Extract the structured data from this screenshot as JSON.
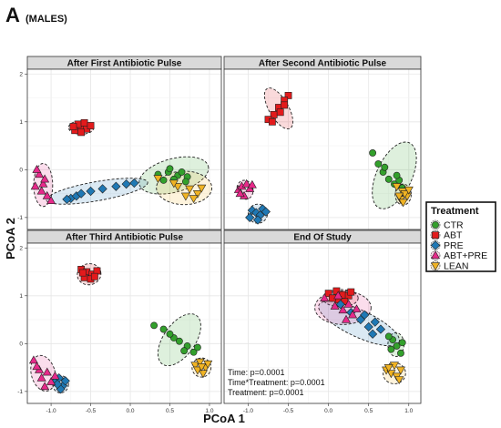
{
  "figure": {
    "panel_letter": "A",
    "panel_sublabel": "(MALES)",
    "xlabel": "PCoA 1",
    "ylabel": "PCoA 2",
    "stats": [
      "Time: p=0.0001",
      "Time*Treatment: p=0.0001",
      "Treatment: p=0.0001"
    ]
  },
  "legend": {
    "title": "Treatment",
    "items": [
      {
        "label": "CTR",
        "color": "#33a02c",
        "shape": "circle"
      },
      {
        "label": "ABT",
        "color": "#e31a1c",
        "shape": "square"
      },
      {
        "label": "PRE",
        "color": "#1f78b4",
        "shape": "diamond"
      },
      {
        "label": "ABT+PRE",
        "color": "#e7298a",
        "shape": "triangle-up"
      },
      {
        "label": "LEAN",
        "color": "#f0b323",
        "shape": "triangle-down"
      }
    ]
  },
  "chart_data": {
    "type": "scatter",
    "xlim": [
      -1.3,
      1.15
    ],
    "ylim": [
      -1.25,
      2.1
    ],
    "xticks": [
      -1.0,
      -0.5,
      0.0,
      0.5,
      1.0
    ],
    "xtick_labels": [
      "-1.0",
      "-0.5",
      "0.0",
      "0.5",
      "1.0"
    ],
    "yticks": [
      -1,
      0,
      1,
      2
    ],
    "ytick_labels": [
      "-1",
      "0",
      "1",
      "2"
    ],
    "grid": true,
    "legend_position": "right",
    "facets": [
      {
        "title": "After First Antibiotic Pulse",
        "groups": {
          "CTR": [
            [
              0.35,
              -0.1
            ],
            [
              0.48,
              -0.05
            ],
            [
              0.6,
              -0.12
            ],
            [
              0.72,
              -0.15
            ],
            [
              0.55,
              -0.2
            ],
            [
              0.42,
              -0.22
            ],
            [
              0.65,
              -0.05
            ],
            [
              0.5,
              0.02
            ],
            [
              0.7,
              -0.25
            ]
          ],
          "ABT": [
            [
              -0.7,
              0.82
            ],
            [
              -0.62,
              0.88
            ],
            [
              -0.55,
              0.85
            ],
            [
              -0.66,
              0.95
            ],
            [
              -0.58,
              0.98
            ],
            [
              -0.5,
              0.92
            ],
            [
              -0.72,
              0.9
            ],
            [
              -0.62,
              0.78
            ]
          ],
          "PRE": [
            [
              -0.75,
              -0.6
            ],
            [
              -0.68,
              -0.55
            ],
            [
              -0.62,
              -0.5
            ],
            [
              -0.5,
              -0.45
            ],
            [
              -0.35,
              -0.4
            ],
            [
              -0.18,
              -0.35
            ],
            [
              -0.05,
              -0.3
            ],
            [
              0.05,
              -0.28
            ],
            [
              -0.8,
              -0.62
            ]
          ],
          "ABT+PRE": [
            [
              -1.2,
              -0.35
            ],
            [
              -1.15,
              -0.1
            ],
            [
              -1.1,
              -0.3
            ],
            [
              -1.05,
              -0.55
            ],
            [
              -1.18,
              0.0
            ],
            [
              -1.08,
              -0.2
            ],
            [
              -1.0,
              -0.65
            ],
            [
              -1.12,
              -0.45
            ]
          ],
          "LEAN": [
            [
              0.35,
              -0.18
            ],
            [
              0.6,
              -0.35
            ],
            [
              0.75,
              -0.4
            ],
            [
              0.85,
              -0.5
            ],
            [
              0.7,
              -0.55
            ],
            [
              0.9,
              -0.38
            ],
            [
              0.55,
              -0.28
            ],
            [
              0.8,
              -0.6
            ]
          ]
        },
        "ellipses": {
          "CTR": {
            "cx": 0.55,
            "cy": -0.12,
            "rx": 0.45,
            "ry": 0.35,
            "angle": 15
          },
          "ABT": {
            "cx": -0.62,
            "cy": 0.88,
            "rx": 0.16,
            "ry": 0.14,
            "angle": 0
          },
          "PRE": {
            "cx": -0.42,
            "cy": -0.45,
            "rx": 0.65,
            "ry": 0.2,
            "angle": 10
          },
          "ABT+PRE": {
            "cx": -1.1,
            "cy": -0.32,
            "rx": 0.12,
            "ry": 0.45,
            "angle": 0
          },
          "LEAN": {
            "cx": 0.68,
            "cy": -0.38,
            "rx": 0.35,
            "ry": 0.35,
            "angle": 0
          }
        }
      },
      {
        "title": "After Second Antibiotic Pulse",
        "groups": {
          "CTR": [
            [
              0.55,
              0.35
            ],
            [
              0.62,
              0.12
            ],
            [
              0.68,
              -0.05
            ],
            [
              0.75,
              -0.2
            ],
            [
              0.82,
              -0.3
            ],
            [
              0.88,
              -0.22
            ],
            [
              0.92,
              -0.38
            ],
            [
              0.7,
              0.05
            ],
            [
              0.85,
              -0.12
            ]
          ],
          "ABT": [
            [
              -0.5,
              1.55
            ],
            [
              -0.55,
              1.45
            ],
            [
              -0.62,
              1.3
            ],
            [
              -0.68,
              1.15
            ],
            [
              -0.75,
              1.05
            ],
            [
              -0.6,
              1.2
            ],
            [
              -0.55,
              1.35
            ],
            [
              -0.7,
              1.0
            ]
          ],
          "PRE": [
            [
              -0.95,
              -0.85
            ],
            [
              -0.9,
              -0.9
            ],
            [
              -0.85,
              -0.95
            ],
            [
              -0.82,
              -0.82
            ],
            [
              -0.98,
              -1.0
            ],
            [
              -0.88,
              -1.05
            ],
            [
              -0.78,
              -0.88
            ]
          ],
          "ABT+PRE": [
            [
              -1.12,
              -0.42
            ],
            [
              -1.08,
              -0.35
            ],
            [
              -1.02,
              -0.3
            ],
            [
              -1.05,
              -0.55
            ],
            [
              -0.98,
              -0.4
            ],
            [
              -1.1,
              -0.5
            ],
            [
              -0.95,
              -0.32
            ]
          ],
          "LEAN": [
            [
              0.85,
              -0.35
            ],
            [
              0.92,
              -0.45
            ],
            [
              0.98,
              -0.55
            ],
            [
              0.9,
              -0.62
            ],
            [
              0.95,
              -0.5
            ],
            [
              1.0,
              -0.42
            ],
            [
              0.88,
              -0.55
            ],
            [
              0.93,
              -0.68
            ]
          ]
        },
        "ellipses": {
          "CTR": {
            "cx": 0.82,
            "cy": -0.12,
            "rx": 0.22,
            "ry": 0.75,
            "angle": -25
          },
          "ABT": {
            "cx": -0.62,
            "cy": 1.28,
            "rx": 0.12,
            "ry": 0.48,
            "angle": 30
          },
          "PRE": {
            "cx": -0.88,
            "cy": -0.92,
            "rx": 0.12,
            "ry": 0.2,
            "angle": 20
          },
          "ABT+PRE": {
            "cx": -1.04,
            "cy": -0.42,
            "rx": 0.1,
            "ry": 0.2,
            "angle": 15
          },
          "LEAN": {
            "cx": 0.93,
            "cy": -0.52,
            "rx": 0.1,
            "ry": 0.22,
            "angle": 0
          }
        }
      },
      {
        "title": "After Third Antibiotic Pulse",
        "groups": {
          "CTR": [
            [
              0.3,
              0.38
            ],
            [
              0.42,
              0.3
            ],
            [
              0.55,
              0.12
            ],
            [
              0.62,
              0.05
            ],
            [
              0.72,
              -0.05
            ],
            [
              0.8,
              -0.18
            ],
            [
              0.68,
              -0.15
            ],
            [
              0.5,
              0.2
            ],
            [
              0.85,
              -0.08
            ]
          ],
          "ABT": [
            [
              -0.62,
              1.55
            ],
            [
              -0.55,
              1.5
            ],
            [
              -0.48,
              1.45
            ],
            [
              -0.42,
              1.52
            ],
            [
              -0.58,
              1.38
            ],
            [
              -0.5,
              1.35
            ],
            [
              -0.6,
              1.48
            ],
            [
              -0.45,
              1.4
            ]
          ],
          "PRE": [
            [
              -0.95,
              -0.8
            ],
            [
              -0.9,
              -0.72
            ],
            [
              -0.85,
              -0.88
            ],
            [
              -0.88,
              -0.95
            ],
            [
              -0.82,
              -0.78
            ],
            [
              -0.92,
              -0.85
            ]
          ],
          "ABT+PRE": [
            [
              -1.22,
              -0.35
            ],
            [
              -1.15,
              -0.55
            ],
            [
              -1.12,
              -0.72
            ],
            [
              -1.05,
              -0.6
            ],
            [
              -1.0,
              -0.8
            ],
            [
              -0.95,
              -0.68
            ],
            [
              -1.18,
              -0.48
            ],
            [
              -1.08,
              -0.9
            ]
          ],
          "LEAN": [
            [
              0.82,
              -0.45
            ],
            [
              0.88,
              -0.38
            ],
            [
              0.95,
              -0.5
            ],
            [
              0.92,
              -0.62
            ],
            [
              0.85,
              -0.55
            ],
            [
              0.98,
              -0.42
            ],
            [
              0.9,
              -0.48
            ]
          ]
        },
        "ellipses": {
          "CTR": {
            "cx": 0.62,
            "cy": 0.08,
            "rx": 0.2,
            "ry": 0.62,
            "angle": -35
          },
          "ABT": {
            "cx": -0.52,
            "cy": 1.45,
            "rx": 0.15,
            "ry": 0.22,
            "angle": 10
          },
          "PRE": {
            "cx": -0.88,
            "cy": -0.85,
            "rx": 0.1,
            "ry": 0.18,
            "angle": 0
          },
          "ABT+PRE": {
            "cx": -1.1,
            "cy": -0.62,
            "rx": 0.15,
            "ry": 0.38,
            "angle": 15
          },
          "LEAN": {
            "cx": 0.9,
            "cy": -0.5,
            "rx": 0.12,
            "ry": 0.2,
            "angle": 0
          }
        }
      },
      {
        "title": "End Of Study",
        "groups": {
          "CTR": [
            [
              0.8,
              0.08
            ],
            [
              0.85,
              -0.05
            ],
            [
              0.9,
              -0.2
            ],
            [
              0.78,
              -0.12
            ],
            [
              0.92,
              0.02
            ],
            [
              0.75,
              0.15
            ]
          ],
          "ABT": [
            [
              0.0,
              1.05
            ],
            [
              0.1,
              1.1
            ],
            [
              0.18,
              1.02
            ],
            [
              0.25,
              1.0
            ],
            [
              0.12,
              0.92
            ],
            [
              0.28,
              1.08
            ],
            [
              0.05,
              0.95
            ],
            [
              0.2,
              0.88
            ]
          ],
          "PRE": [
            [
              0.15,
              0.82
            ],
            [
              0.28,
              0.65
            ],
            [
              0.4,
              0.5
            ],
            [
              0.5,
              0.35
            ],
            [
              0.55,
              0.2
            ],
            [
              0.65,
              0.3
            ],
            [
              0.45,
              0.6
            ],
            [
              0.58,
              0.45
            ]
          ],
          "ABT+PRE": [
            [
              -0.05,
              0.95
            ],
            [
              0.08,
              0.78
            ],
            [
              0.18,
              0.7
            ],
            [
              0.25,
              0.82
            ],
            [
              0.12,
              1.0
            ],
            [
              0.3,
              0.6
            ],
            [
              0.22,
              0.5
            ],
            [
              0.35,
              0.72
            ]
          ],
          "LEAN": [
            [
              0.72,
              -0.55
            ],
            [
              0.78,
              -0.62
            ],
            [
              0.85,
              -0.68
            ],
            [
              0.9,
              -0.55
            ],
            [
              0.82,
              -0.45
            ],
            [
              0.88,
              -0.75
            ],
            [
              0.75,
              -0.5
            ]
          ]
        },
        "ellipses": {
          "CTR": {
            "cx": 0.84,
            "cy": -0.02,
            "rx": 0.1,
            "ry": 0.25,
            "angle": 0
          },
          "ABT": {
            "cx": 0.15,
            "cy": 0.95,
            "rx": 0.22,
            "ry": 0.18,
            "angle": 0
          },
          "PRE": {
            "cx": 0.38,
            "cy": 0.42,
            "rx": 0.55,
            "ry": 0.28,
            "angle": -25
          },
          "ABT+PRE": {
            "cx": 0.18,
            "cy": 0.75,
            "rx": 0.35,
            "ry": 0.35,
            "angle": 0
          },
          "LEAN": {
            "cx": 0.82,
            "cy": -0.62,
            "rx": 0.14,
            "ry": 0.22,
            "angle": 0
          }
        }
      }
    ]
  }
}
